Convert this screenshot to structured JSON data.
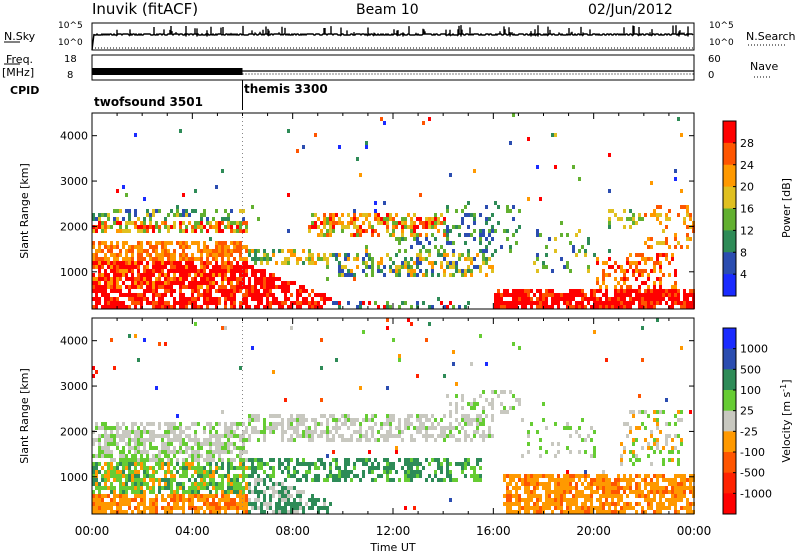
{
  "header": {
    "station": "Inuvik (fitACF)",
    "beam": "Beam 10",
    "date": "02/Jun/2012"
  },
  "top_panels": {
    "nsky_label": "N.Sky",
    "nsearch_label": "N.Search",
    "nsky_ticks": [
      "10^5",
      "10^0"
    ],
    "nsearch_ticks": [
      "10^5",
      "10^0"
    ],
    "freq_label": "Freq.",
    "freq_unit": "[MHz]",
    "freq_ticks": [
      "18",
      "8"
    ],
    "nave_label": "Nave",
    "nave_ticks": [
      "60",
      "0"
    ],
    "cpid_label": "CPID",
    "cpid_segments": [
      {
        "name": "twofsound 3501",
        "start_hour": 0,
        "end_hour": 6
      },
      {
        "name": "themis 3300",
        "start_hour": 6,
        "end_hour": 24
      }
    ]
  },
  "chart_data": [
    {
      "type": "heatmap",
      "name": "power",
      "ylabel": "Slant Range [km]",
      "yticks": [
        1000,
        2000,
        3000,
        4000
      ],
      "ylim": [
        180,
        4500
      ],
      "xlim": [
        0,
        24
      ],
      "colorbar_label": "Power [dB]",
      "colorbar_ticks": [
        "28",
        "24",
        "20",
        "16",
        "12",
        "8",
        "4"
      ],
      "colorbar_colors": [
        "#ff0000",
        "#ff5500",
        "#ff9900",
        "#e0c020",
        "#62b030",
        "#2e8b57",
        "#2b4db0",
        "#1a2bff"
      ]
    },
    {
      "type": "heatmap",
      "name": "velocity",
      "ylabel": "Slant Range [km]",
      "yticks": [
        1000,
        2000,
        3000,
        4000
      ],
      "ylim": [
        180,
        4500
      ],
      "xlim": [
        0,
        24
      ],
      "xlabel": "Time UT",
      "xticks": [
        "00:00",
        "04:00",
        "08:00",
        "12:00",
        "16:00",
        "20:00",
        "00:00"
      ],
      "colorbar_label": "Velocity [m s^-1]",
      "colorbar_ticks": [
        "1000",
        "500",
        "100",
        "25",
        "-25",
        "-100",
        "-500",
        "-1000"
      ],
      "colorbar_colors": [
        "#1a2bff",
        "#2b4db0",
        "#2e8b57",
        "#66cc33",
        "#c8c8c0",
        "#ff9900",
        "#ff5500",
        "#ff2200",
        "#ff0000"
      ]
    }
  ]
}
